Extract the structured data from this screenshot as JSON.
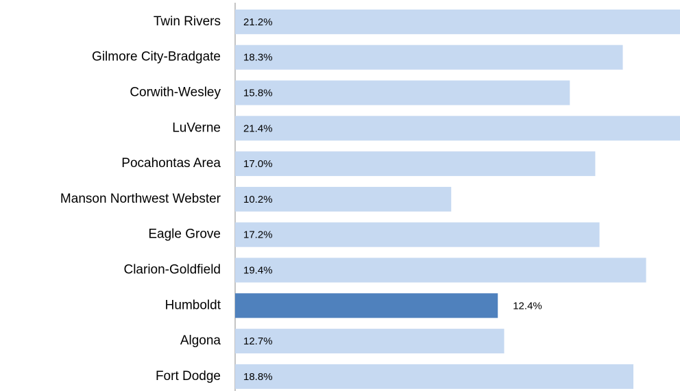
{
  "chart_data": {
    "type": "barh",
    "categories": [
      "Twin Rivers",
      "Gilmore City-Bradgate",
      "Corwith-Wesley",
      "LuVerne",
      "Pocahontas Area",
      "Manson Northwest Webster",
      "Eagle Grove",
      "Clarion-Goldfield",
      "Humboldt",
      "Algona",
      "Fort Dodge"
    ],
    "values": [
      21.2,
      18.3,
      15.8,
      21.4,
      17.0,
      10.2,
      17.2,
      19.4,
      12.4,
      12.7,
      18.8
    ],
    "value_labels": [
      "21.2%",
      "18.3%",
      "15.8%",
      "21.4%",
      "17.0%",
      "10.2%",
      "17.2%",
      "19.4%",
      "12.4%",
      "12.7%",
      "18.8%"
    ],
    "color": "#c6d9f1",
    "highlight_color": "#4f81bd",
    "highlight_index": 8,
    "xlim": [
      0,
      21
    ]
  }
}
